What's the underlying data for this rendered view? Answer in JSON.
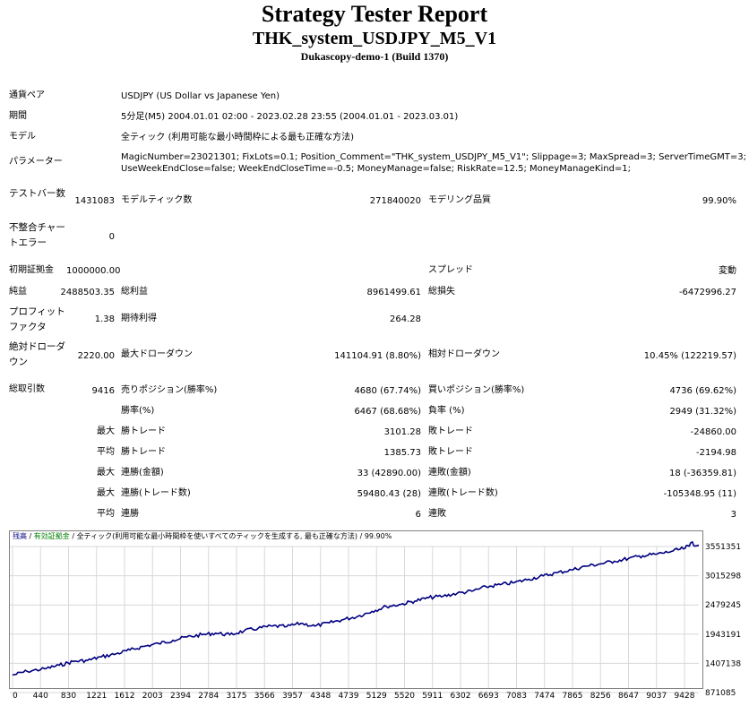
{
  "header": {
    "title": "Strategy Tester Report",
    "subtitle": "THK_system_USDJPY_M5_V1",
    "server": "Dukascopy-demo-1 (Build 1370)"
  },
  "settings": {
    "symbol_label": "通貨ペア",
    "symbol_value": "USDJPY (US Dollar vs Japanese Yen)",
    "period_label": "期間",
    "period_value": "5分足(M5) 2004.01.01 02:00 - 2023.02.28 23:55 (2004.01.01 - 2023.03.01)",
    "model_label": "モデル",
    "model_value": "全ティック (利用可能な最小時間枠による最も正確な方法)",
    "params_label": "パラメーター",
    "params_line1": "MagicNumber=23021301; FixLots=0.1; Position_Comment=\"THK_system_USDJPY_M5_V1\"; Slippage=3; MaxSpread=3; ServerTimeGMT=3;",
    "params_line2": "UseWeekEndClose=false; WeekEndCloseTime=-0.5; MoneyManage=false; RiskRate=12.5; MoneyManageKind=1;"
  },
  "stats": {
    "bars_label": "テストバー数",
    "bars_value": "1431083",
    "ticks_label": "モデルティック数",
    "ticks_value": "271840020",
    "quality_label": "モデリング品質",
    "quality_value": "99.90%",
    "mismatch_label": "不整合チャートエラー",
    "mismatch_value": "0",
    "deposit_label": "初期証拠金",
    "deposit_value": "1000000.00",
    "spread_label": "スプレッド",
    "spread_value": "変動",
    "net_label": "純益",
    "net_value": "2488503.35",
    "gross_profit_label": "総利益",
    "gross_profit_value": "8961499.61",
    "gross_loss_label": "総損失",
    "gross_loss_value": "-6472996.27",
    "pf_label": "プロフィットファクタ",
    "pf_value": "1.38",
    "expected_label": "期待利得",
    "expected_value": "264.28",
    "abs_dd_label": "絶対ドローダウン",
    "abs_dd_value": "2220.00",
    "max_dd_label": "最大ドローダウン",
    "max_dd_value": "141104.91 (8.80%)",
    "rel_dd_label": "相対ドローダウン",
    "rel_dd_value": "10.45% (122219.57)",
    "trades_label": "総取引数",
    "trades_value": "9416",
    "short_label": "売りポジション(勝率%)",
    "short_value": "4680 (67.74%)",
    "long_label": "買いポジション(勝率%)",
    "long_value": "4736 (69.62%)",
    "winrate_label": "勝率(%)",
    "winrate_value": "6467 (68.68%)",
    "lossrate_label": "負率 (%)",
    "lossrate_value": "2949 (31.32%)",
    "max_label": "最大",
    "avg_label": "平均",
    "max_win_label": "勝トレード",
    "max_win_value": "3101.28",
    "max_loss_label": "敗トレード",
    "max_loss_value": "-24860.00",
    "avg_win_label": "勝トレード",
    "avg_win_value": "1385.73",
    "avg_loss_label": "敗トレード",
    "avg_loss_value": "-2194.98",
    "max_consec_win_label": "連勝(金額)",
    "max_consec_win_value": "33 (42890.00)",
    "max_consec_loss_label": "連敗(金額)",
    "max_consec_loss_value": "18 (-36359.81)",
    "max_consec_profit_label": "連勝(トレード数)",
    "max_consec_profit_value": "59480.43 (28)",
    "max_consec_lossamt_label": "連敗(トレード数)",
    "max_consec_lossamt_value": "-105348.95 (11)",
    "avg_consec_win_label": "連勝",
    "avg_consec_win_value": "6",
    "avg_consec_loss_label": "連敗",
    "avg_consec_loss_value": "3"
  },
  "chart_data": {
    "type": "line",
    "legend": {
      "balance": "残高",
      "sep1": " / ",
      "equity": "有効証拠金",
      "sep2": " / ",
      "model": "全ティック(利用可能な最小時間枠を使いすべてのティックを生成する, 最も正確な方法)",
      "sep3": " / ",
      "quality": "99.90%"
    },
    "x_ticks": [
      "0",
      "440",
      "830",
      "1221",
      "1612",
      "2003",
      "2394",
      "2784",
      "3175",
      "3566",
      "3957",
      "4348",
      "4739",
      "5129",
      "5520",
      "5911",
      "6302",
      "6693",
      "7083",
      "7474",
      "7865",
      "8256",
      "8647",
      "9037",
      "9428"
    ],
    "y_ticks": [
      "3551351",
      "3015298",
      "2479245",
      "1943191",
      "1407138",
      "871085"
    ],
    "x_range": [
      0,
      9416
    ],
    "y_range": [
      871085,
      3551351
    ],
    "series": [
      {
        "color": "#000080",
        "x": [
          0,
          200,
          440,
          640,
          830,
          1030,
          1221,
          1420,
          1612,
          1810,
          2003,
          2200,
          2394,
          2600,
          2784,
          2980,
          3175,
          3370,
          3566,
          3760,
          3957,
          4150,
          4348,
          4540,
          4739,
          4930,
          5129,
          5330,
          5520,
          5710,
          5911,
          6100,
          6302,
          6500,
          6693,
          6890,
          7083,
          7280,
          7474,
          7670,
          7865,
          8060,
          8256,
          8450,
          8647,
          8840,
          9037,
          9230,
          9300,
          9416
        ],
        "y": [
          1060000,
          1130000,
          1175000,
          1240000,
          1310000,
          1330000,
          1395000,
          1450000,
          1520000,
          1590000,
          1640000,
          1700000,
          1760000,
          1800000,
          1830000,
          1800000,
          1870000,
          1920000,
          1960000,
          1950000,
          2010000,
          1960000,
          2020000,
          2080000,
          2140000,
          2230000,
          2320000,
          2360000,
          2420000,
          2480000,
          2510000,
          2560000,
          2600000,
          2680000,
          2720000,
          2760000,
          2820000,
          2880000,
          2940000,
          2990000,
          3060000,
          3100000,
          3150000,
          3200000,
          3250000,
          3280000,
          3330000,
          3390000,
          3480000,
          3440000
        ]
      }
    ]
  }
}
